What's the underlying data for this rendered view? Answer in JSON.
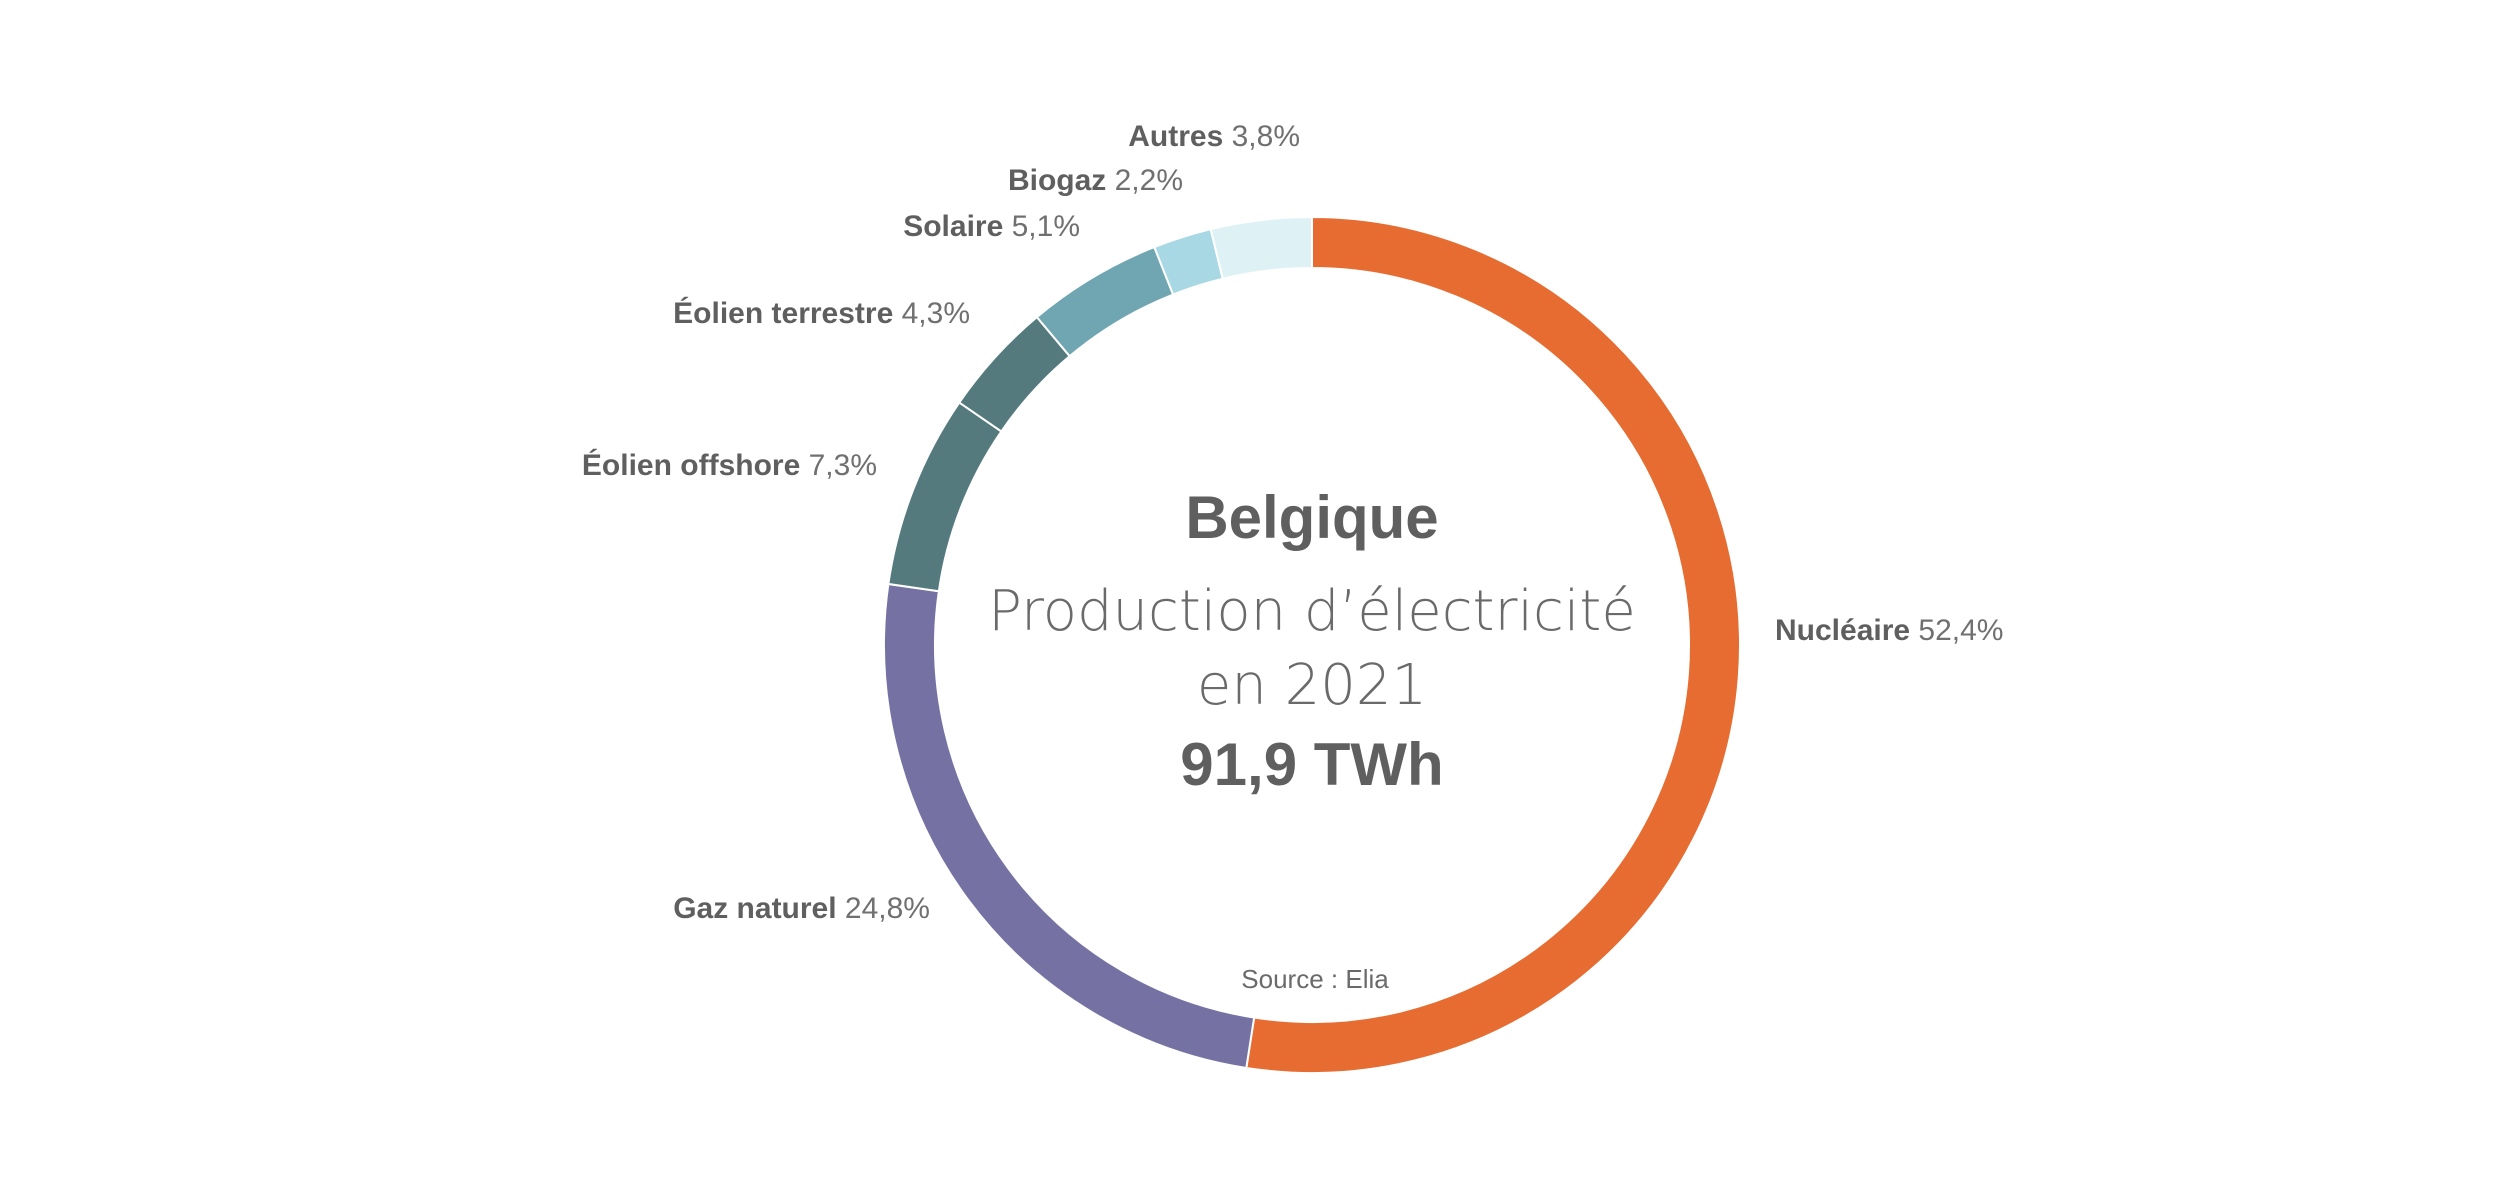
{
  "chart_data": {
    "type": "pie",
    "variant": "donut",
    "title": "Belgique",
    "subtitle_line1": "Production d’électricité",
    "subtitle_line2": "en 2021",
    "total": "91,9 TWh",
    "source": "Source : Elia",
    "slices": [
      {
        "name": "Nucléaire",
        "value": 52.4,
        "label": "52,4%",
        "color": "#e66c31"
      },
      {
        "name": "Gaz naturel",
        "value": 24.8,
        "label": "24,8%",
        "color": "#7572a3"
      },
      {
        "name": "Éolien offshore",
        "value": 7.3,
        "label": "7,3%",
        "color": "#557a7e"
      },
      {
        "name": "Éolien terrestre",
        "value": 4.3,
        "label": "4,3%",
        "color": "#557a7e"
      },
      {
        "name": "Solaire",
        "value": 5.1,
        "label": "5,1%",
        "color": "#6fa6b2"
      },
      {
        "name": "Biogaz",
        "value": 2.2,
        "label": "2,2%",
        "color": "#a8d8e3"
      },
      {
        "name": "Autres",
        "value": 3.8,
        "label": "3,8%",
        "color": "#def2f6"
      }
    ]
  }
}
